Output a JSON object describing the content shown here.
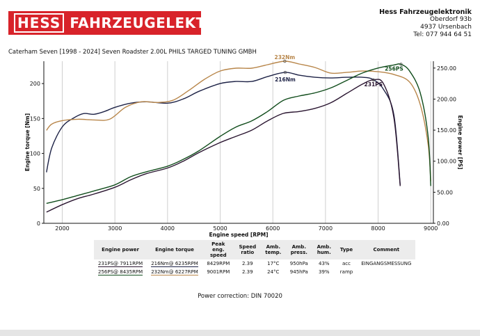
{
  "header": {
    "logo_left": "HESS",
    "logo_right": "FAHRZEUGELEKTRONIK",
    "company_name": "Hess Fahrzeugelektronik",
    "address1": "Oberdorf 93b",
    "address2": "4937 Ursenbach",
    "phone": "Tel: 077 944 64 51"
  },
  "vehicle": "Caterham Seven [1998 - 2024] Seven Roadster 2.00L PHILS TARGED TUNING GMBH",
  "table": {
    "headers": [
      "Engine power",
      "Engine torque",
      "Peak eng. speed",
      "Speed ratio",
      "Amb. temp.",
      "Amb. press.",
      "Amb. hum.",
      "Type",
      "Comment"
    ],
    "rows": [
      {
        "power": "231PS@ 7911RPM",
        "torque": "216Nm@ 6235RPM",
        "peak": "8429RPM",
        "ratio": "2.39",
        "temp": "17°C",
        "press": "950hPa",
        "hum": "43%",
        "type": "acc",
        "comment": "EINGANGSMESSUNG"
      },
      {
        "power": "256PS@ 8435RPM",
        "torque": "232Nm@ 6227RPM",
        "peak": "9001RPM",
        "ratio": "2.39",
        "temp": "24°C",
        "press": "945hPa",
        "hum": "39%",
        "type": "ramp",
        "comment": ""
      }
    ]
  },
  "power_correction": "Power correction: DIN 70020",
  "colors": {
    "run1_torque": "#1d2246",
    "run1_power": "#2a1530",
    "run2_torque": "#b8864a",
    "run2_power": "#114d1c"
  },
  "chart_data": {
    "type": "line",
    "xlabel": "Engine speed [RPM]",
    "ylabel": "Engine torque [Nm]",
    "y2label": "Engine power [PS]",
    "xlim": [
      1650,
      9050
    ],
    "ylim": [
      0,
      232
    ],
    "y2lim": [
      0,
      261
    ],
    "xticks": [
      2000,
      3000,
      4000,
      5000,
      6000,
      7000,
      8000,
      9000
    ],
    "yticks": [
      0,
      50,
      100,
      150,
      200
    ],
    "y2ticks": [
      "0.00",
      "50.00",
      "100.00",
      "150.00",
      "200.00",
      "250.00"
    ],
    "grid": "vertical",
    "series": [
      {
        "name": "216Nm@ 6235RPM",
        "axis": "left",
        "color": "#1d2246",
        "x": [
          1700,
          1800,
          2000,
          2200,
          2400,
          2600,
          2800,
          3000,
          3300,
          3600,
          4000,
          4300,
          4600,
          5000,
          5300,
          5600,
          5900,
          6235,
          6500,
          6800,
          7100,
          7400,
          7700,
          7900,
          8100,
          8300,
          8420
        ],
        "y": [
          73,
          108,
          138,
          150,
          157,
          156,
          160,
          166,
          172,
          174,
          172,
          178,
          189,
          200,
          203,
          203,
          210,
          216,
          212,
          209,
          208,
          209,
          209,
          206,
          192,
          155,
          55
        ],
        "label": "216Nm",
        "label_x": 6235,
        "label_y": 216
      },
      {
        "name": "232Nm@ 6227RPM",
        "axis": "left",
        "color": "#b8864a",
        "x": [
          1700,
          1800,
          2000,
          2300,
          2600,
          2900,
          3200,
          3500,
          3800,
          4100,
          4400,
          4700,
          5000,
          5300,
          5600,
          5900,
          6227,
          6500,
          6800,
          7100,
          7400,
          7700,
          8000,
          8300,
          8600,
          8800,
          8950,
          9000
        ],
        "y": [
          133,
          142,
          147,
          149,
          148,
          149,
          166,
          174,
          173,
          176,
          190,
          206,
          218,
          222,
          222,
          227,
          232,
          228,
          223,
          215,
          216,
          218,
          217,
          213,
          202,
          170,
          113,
          60
        ],
        "label": "232Nm",
        "label_x": 6227,
        "label_y": 232
      },
      {
        "name": "231PS@ 7911RPM",
        "axis": "right",
        "color": "#2a1530",
        "x": [
          1700,
          2000,
          2300,
          2600,
          3000,
          3300,
          3600,
          4000,
          4300,
          4600,
          5000,
          5300,
          5600,
          5900,
          6200,
          6500,
          6800,
          7100,
          7400,
          7700,
          7911,
          8100,
          8300,
          8420
        ],
        "y": [
          18,
          30,
          40,
          47,
          58,
          70,
          80,
          89,
          100,
          114,
          130,
          140,
          150,
          165,
          177,
          180,
          185,
          194,
          209,
          224,
          231,
          225,
          170,
          60
        ],
        "label": "231PS",
        "label_x": 7911,
        "label_y": 231
      },
      {
        "name": "256PS@ 8435RPM",
        "axis": "right",
        "color": "#114d1c",
        "x": [
          1700,
          2000,
          2300,
          2600,
          3000,
          3300,
          3600,
          4000,
          4300,
          4600,
          5000,
          5300,
          5600,
          5900,
          6200,
          6500,
          6800,
          7100,
          7400,
          7700,
          8000,
          8300,
          8435,
          8600,
          8800,
          8950,
          9000
        ],
        "y": [
          32,
          38,
          45,
          52,
          62,
          75,
          83,
          92,
          103,
          117,
          140,
          155,
          165,
          180,
          198,
          205,
          210,
          218,
          230,
          242,
          250,
          255,
          256,
          245,
          210,
          140,
          60
        ],
        "label": "256PS",
        "label_x": 8435,
        "label_y": 256
      }
    ]
  }
}
